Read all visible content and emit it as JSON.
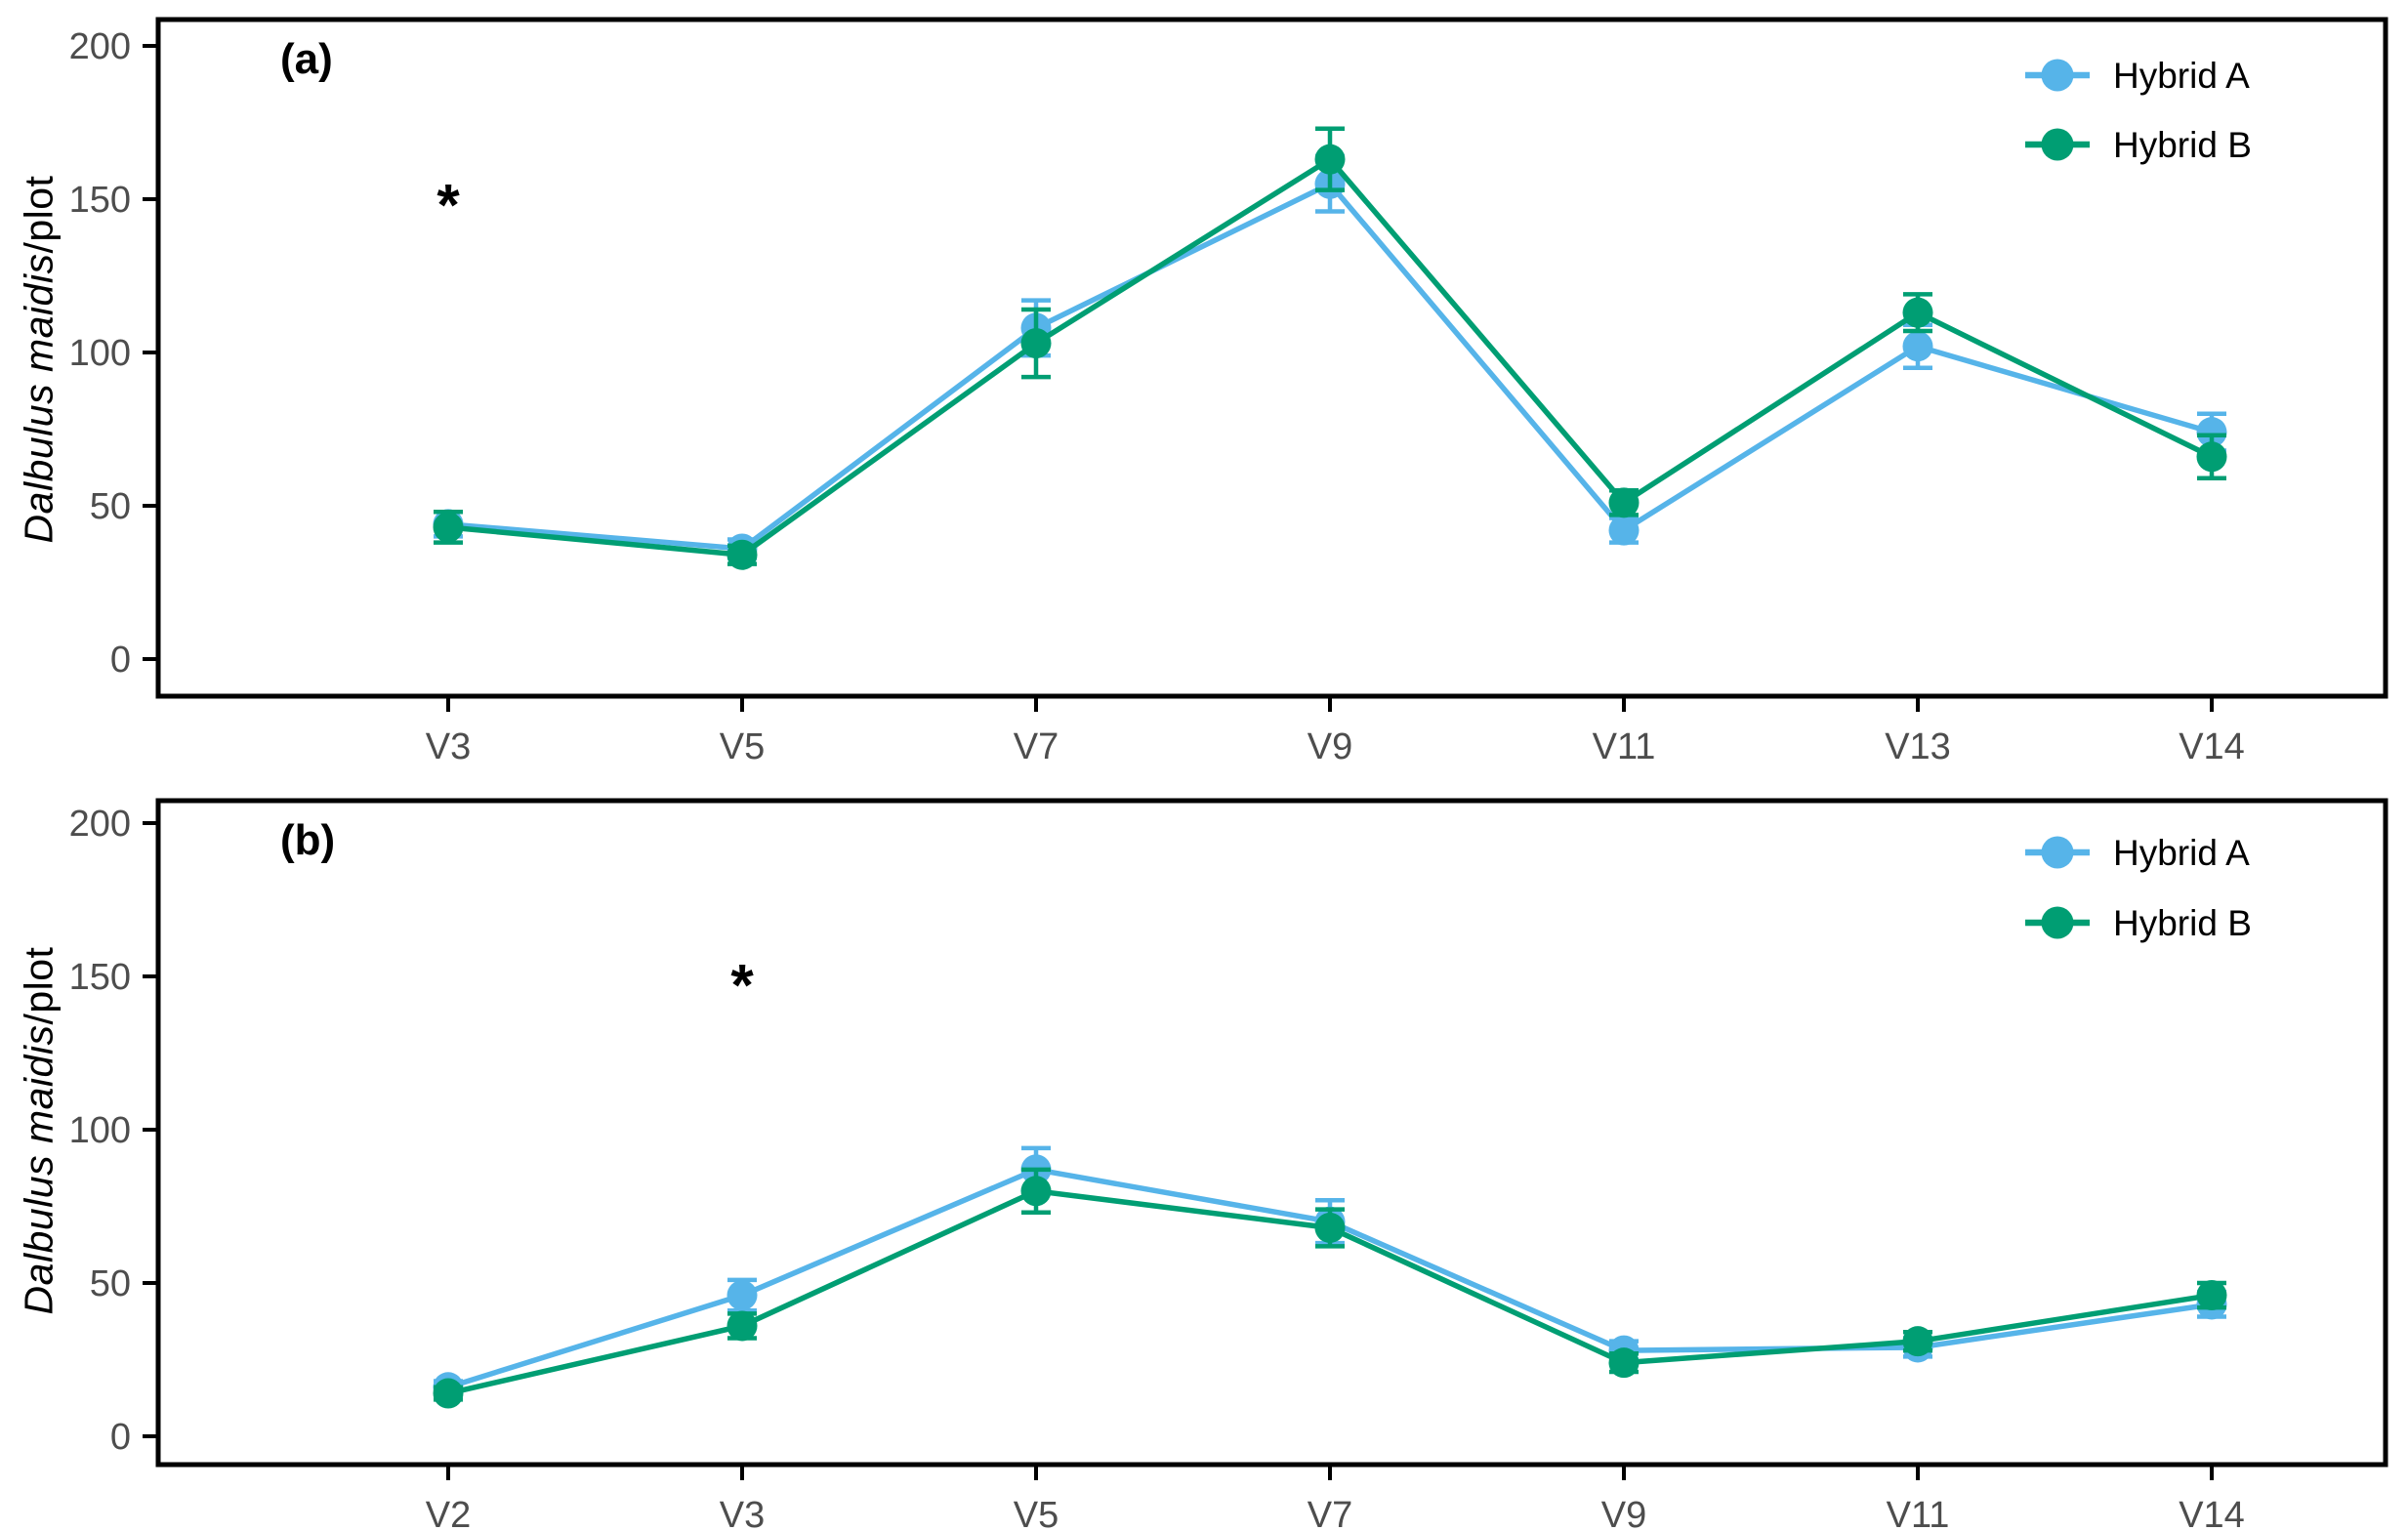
{
  "figure": {
    "y_axis_title": {
      "italic": "Dalbulus maidis",
      "regular": "/plot"
    },
    "colors": {
      "hybrid_a": "#56B4E9",
      "hybrid_b": "#009E73",
      "axis_text": "#4d4d4d",
      "axis_line": "#000000",
      "annotation": "#000000",
      "background": "#ffffff"
    },
    "legend": {
      "position": "top-right",
      "items": [
        {
          "label": "Hybrid A",
          "color": "#56B4E9"
        },
        {
          "label": "Hybrid B",
          "color": "#009E73"
        }
      ]
    }
  },
  "chart_data": [
    {
      "type": "line",
      "panel_label": "(a)",
      "categories": [
        "V3",
        "V5",
        "V7",
        "V9",
        "V11",
        "V13",
        "V14"
      ],
      "xlabel": "",
      "ylabel": "Dalbulus maidis/plot",
      "ylim": [
        0,
        200
      ],
      "yticks": [
        0,
        50,
        100,
        150,
        200
      ],
      "grid": false,
      "legend_position": "top-right",
      "series": [
        {
          "name": "Hybrid A",
          "color": "#56B4E9",
          "values": [
            44,
            36,
            108,
            155,
            42,
            102,
            74
          ],
          "errors": [
            4,
            3,
            9,
            9,
            4,
            7,
            6
          ]
        },
        {
          "name": "Hybrid B",
          "color": "#009E73",
          "values": [
            43,
            34,
            103,
            163,
            51,
            113,
            66
          ],
          "errors": [
            5,
            3,
            11,
            10,
            4,
            6,
            7
          ]
        }
      ],
      "annotations": [
        {
          "text": "*",
          "category": "V3",
          "value": 153
        }
      ]
    },
    {
      "type": "line",
      "panel_label": "(b)",
      "categories": [
        "V2",
        "V3",
        "V5",
        "V7",
        "V9",
        "V11",
        "V14"
      ],
      "xlabel": "",
      "ylabel": "Dalbulus maidis/plot",
      "ylim": [
        0,
        200
      ],
      "yticks": [
        0,
        50,
        100,
        150,
        200
      ],
      "grid": false,
      "legend_position": "top-right",
      "series": [
        {
          "name": "Hybrid A",
          "color": "#56B4E9",
          "values": [
            16,
            46,
            87,
            70,
            28,
            29,
            43
          ],
          "errors": [
            2,
            5,
            7,
            7,
            3,
            3,
            4
          ]
        },
        {
          "name": "Hybrid B",
          "color": "#009E73",
          "values": [
            14,
            36,
            80,
            68,
            24,
            31,
            46
          ],
          "errors": [
            2,
            4,
            7,
            6,
            3,
            3,
            4
          ]
        }
      ],
      "annotations": [
        {
          "text": "*",
          "category": "V3",
          "value": 152
        }
      ]
    }
  ]
}
